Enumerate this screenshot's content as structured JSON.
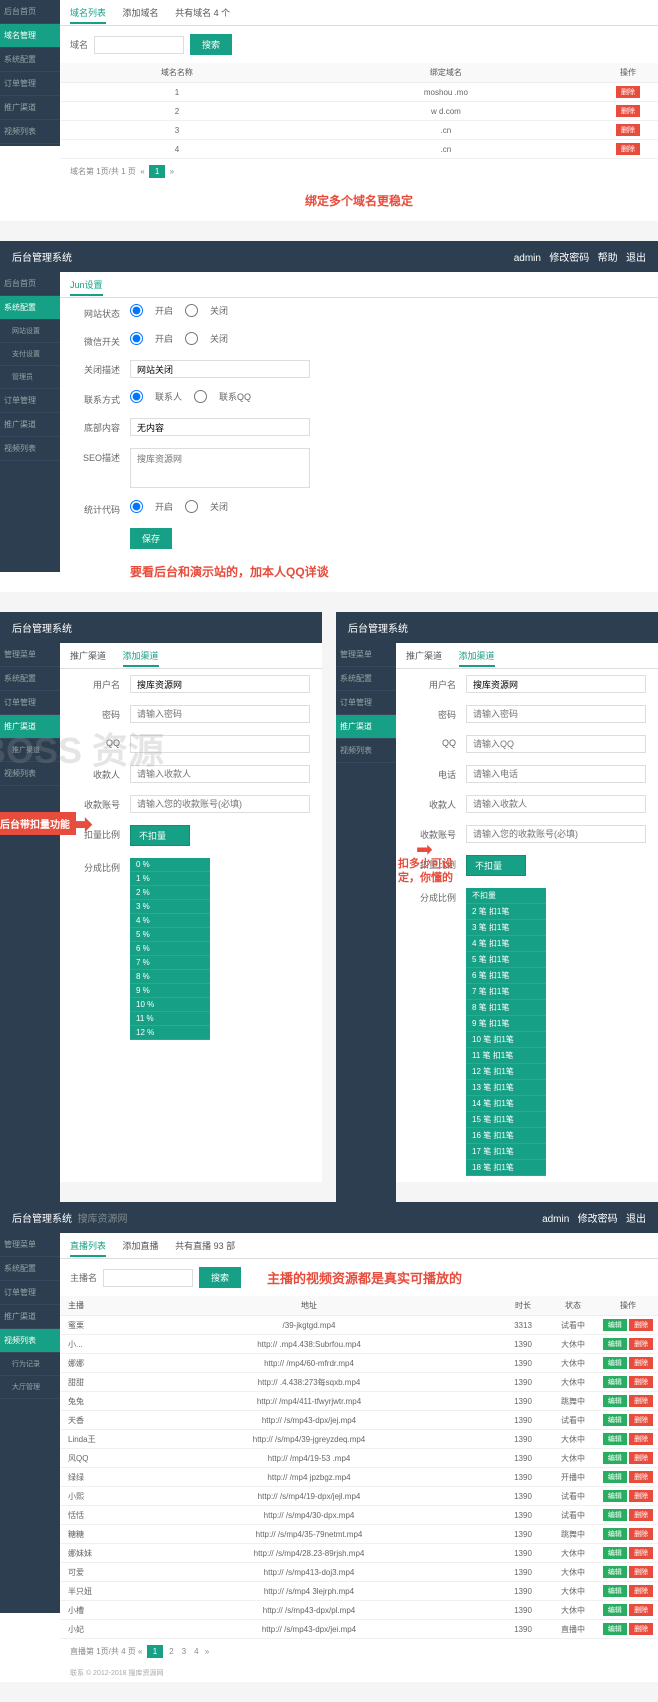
{
  "panel1": {
    "sidebar": [
      "后台首页",
      "域名管理",
      "系统配置",
      "订单管理",
      "推广渠道",
      "视频列表"
    ],
    "active_idx": 1,
    "tabs": [
      "域名列表",
      "添加域名",
      "共有域名 4 个"
    ],
    "active_tab": 0,
    "search_label": "域名",
    "search_btn": "搜索",
    "table_headers": [
      "域名名称",
      "绑定域名",
      "操作"
    ],
    "rows": [
      {
        "name": "1",
        "domain": "moshou .mo",
        "act": "删除"
      },
      {
        "name": "2",
        "domain": "w        d.com",
        "act": "删除"
      },
      {
        "name": "3",
        "domain": "     .cn",
        "act": "删除"
      },
      {
        "name": "4",
        "domain": "     .cn",
        "act": "删除"
      }
    ],
    "pagination": "域名第 1页/共 1 页",
    "note": "绑定多个域名更稳定"
  },
  "panel2": {
    "title": "后台管理系统",
    "header_right": [
      "admin",
      "修改密码",
      "帮助",
      "退出"
    ],
    "sidebar": [
      {
        "label": "后台首页",
        "sub": []
      },
      {
        "label": "系统配置",
        "sub": [
          "网站设置",
          "支付设置",
          "管理员"
        ],
        "active": true
      },
      {
        "label": "订单管理",
        "sub": []
      },
      {
        "label": "推广渠道",
        "sub": []
      },
      {
        "label": "视频列表",
        "sub": []
      }
    ],
    "tab": "Jun设置",
    "form": {
      "site_status_label": "网站状态",
      "site_status_opts": [
        "开启",
        "关闭"
      ],
      "wx_label": "微信开关",
      "wx_opts": [
        "开启",
        "关闭"
      ],
      "close_label": "关闭描述",
      "close_val": "网站关闭",
      "contact_label": "联系方式",
      "contact_opts": [
        "联系人",
        "联系QQ"
      ],
      "bottom_label": "底部内容",
      "bottom_val": "无内容",
      "seo_label": "SEO描述",
      "seo_ph": "搜库资源网",
      "stat_label": "统计代码",
      "stat_opts": [
        "开启",
        "关闭"
      ],
      "save": "保存"
    },
    "note": "要看后台和演示站的，加本人QQ详谈"
  },
  "left_panel": {
    "title": "后台管理系统",
    "sidebar": [
      "管理菜单",
      "系统配置",
      "订单管理",
      "推广渠道",
      "视频列表"
    ],
    "sub": [
      "推广渠道"
    ],
    "tabs": [
      "推广渠道",
      "添加渠道"
    ],
    "active_tab": 1,
    "form": {
      "user_label": "用户名",
      "user_val": "搜库资源网",
      "pwd_label": "密码",
      "pwd_ph": "请输入密码",
      "qq_label": "QQ",
      "qq_ph": "",
      "payee_label": "收款人",
      "payee_ph": "请输入收款人",
      "acct_label": "收款账号",
      "acct_ph": "请输入您的收款账号(必填)",
      "deduct_label": "扣量比例",
      "deduct_val": "不扣量",
      "ratio_label": "分成比例",
      "ratio_opts": [
        "0 %",
        "1 %",
        "2 %",
        "3 %",
        "4 %",
        "5 %",
        "6 %",
        "7 %",
        "8 %",
        "9 %",
        "10 %",
        "11 %",
        "12 %"
      ]
    },
    "callout": "后台带扣量功能",
    "watermark": "BOSS 资源"
  },
  "right_panel": {
    "title": "后台管理系统",
    "sidebar": [
      "管理菜单",
      "系统配置",
      "订单管理",
      "推广渠道",
      "视频列表"
    ],
    "tabs": [
      "推广渠道",
      "添加渠道"
    ],
    "active_tab": 1,
    "form": {
      "user_label": "用户名",
      "user_val": "搜库资源网",
      "pwd_label": "密码",
      "pwd_ph": "请输入密码",
      "qq_label": "QQ",
      "qq_ph": "请输入QQ",
      "phone_label": "电话",
      "phone_ph": "请输入电话",
      "payee_label": "收款人",
      "payee_ph": "请输入收款人",
      "acct_label": "收款账号",
      "acct_ph": "请输入您的收款账号(必填)",
      "deduct_label": "扣量比例",
      "deduct_val": "不扣量",
      "ratio_label": "分成比例",
      "ratio_opts": [
        "不扣量",
        "2 笔 扣1笔",
        "3 笔 扣1笔",
        "4 笔 扣1笔",
        "5 笔 扣1笔",
        "6 笔 扣1笔",
        "7 笔 扣1笔",
        "8 笔 扣1笔",
        "9 笔 扣1笔",
        "10 笔 扣1笔",
        "11 笔 扣1笔",
        "12 笔 扣1笔",
        "13 笔 扣1笔",
        "14 笔 扣1笔",
        "15 笔 扣1笔",
        "16 笔 扣1笔",
        "17 笔 扣1笔",
        "18 笔 扣1笔"
      ]
    },
    "callout": "扣多少可设定，你懂的"
  },
  "panel5": {
    "title": "后台管理系统",
    "watermark": "搜库资源网",
    "header_right": [
      "admin",
      "修改密码",
      "退出"
    ],
    "sidebar": [
      "管理菜单",
      "系统配置",
      "订单管理",
      "推广渠道",
      "视频列表"
    ],
    "sub": [
      "行为记录",
      "大厅管理"
    ],
    "tabs": [
      "直播列表",
      "添加直播",
      "共有直播 93 部"
    ],
    "search_label": "主播名",
    "search_btn": "搜索",
    "note": "主播的视频资源都是真实可播放的",
    "headers": [
      "主播",
      "地址",
      "时长",
      "状态",
      "操作"
    ],
    "rows": [
      {
        "n": "蜜栗",
        "u": "    /39-jkgtgd.mp4",
        "t": "3313",
        "s": "试看中"
      },
      {
        "n": "小...",
        "u": "http://          .mp4.438:Subrfou.mp4",
        "t": "1390",
        "s": "大休中"
      },
      {
        "n": "娜娜",
        "u": "http://    /mp4/60-mfrdr.mp4",
        "t": "1390",
        "s": "大休中"
      },
      {
        "n": "甜甜",
        "u": "http://      .4.438:273每sqxb.mp4",
        "t": "1390",
        "s": "大休中"
      },
      {
        "n": "兔兔",
        "u": "http://    /mp4/411-tfwyrjwtr.mp4",
        "t": "1390",
        "s": "跳舞中"
      },
      {
        "n": "天香",
        "u": "http://    /s/mp43-dpx/jej.mp4",
        "t": "1390",
        "s": "试看中"
      },
      {
        "n": "Linda王",
        "u": "http://    /s/mp4/39-jgreyzdeq.mp4",
        "t": "1390",
        "s": "大休中"
      },
      {
        "n": "风QQ",
        "u": "http://    /mp4/19-53    .mp4",
        "t": "1390",
        "s": "大休中"
      },
      {
        "n": "绿绿",
        "u": "http://    /mp4 jpzbgz.mp4",
        "t": "1390",
        "s": "开播中"
      },
      {
        "n": "小熙",
        "u": "http://    /s/mp4/19-dpx/jejl.mp4",
        "t": "1390",
        "s": "试看中"
      },
      {
        "n": "恬恬",
        "u": "http://    /s/mp4/30-dpx.mp4",
        "t": "1390",
        "s": "试看中"
      },
      {
        "n": "糖糖",
        "u": "http://    /s/mp4/35-79netmt.mp4",
        "t": "1390",
        "s": "跳舞中"
      },
      {
        "n": "娜妹妹",
        "u": "http://    /s/mp4/28.23-89rjsh.mp4",
        "t": "1390",
        "s": "大休中"
      },
      {
        "n": "可爱",
        "u": "http://    /s/mp413-doj3.mp4",
        "t": "1390",
        "s": "大休中"
      },
      {
        "n": "半只妞",
        "u": "http://    /s/mp4 3lejrph.mp4",
        "t": "1390",
        "s": "大休中"
      },
      {
        "n": "小槽",
        "u": "http://    /s/mp43-dpx/pl.mp4",
        "t": "1390",
        "s": "大休中"
      },
      {
        "n": "小妃",
        "u": "http://    /s/mp43-dpx/jei.mp4",
        "t": "1390",
        "s": "直播中"
      }
    ],
    "pagination": "直播第 1页/共 4 页",
    "pages": [
      "1",
      "2",
      "3",
      "4"
    ],
    "footer": "联系 © 2012-2018 搜库资源网"
  }
}
